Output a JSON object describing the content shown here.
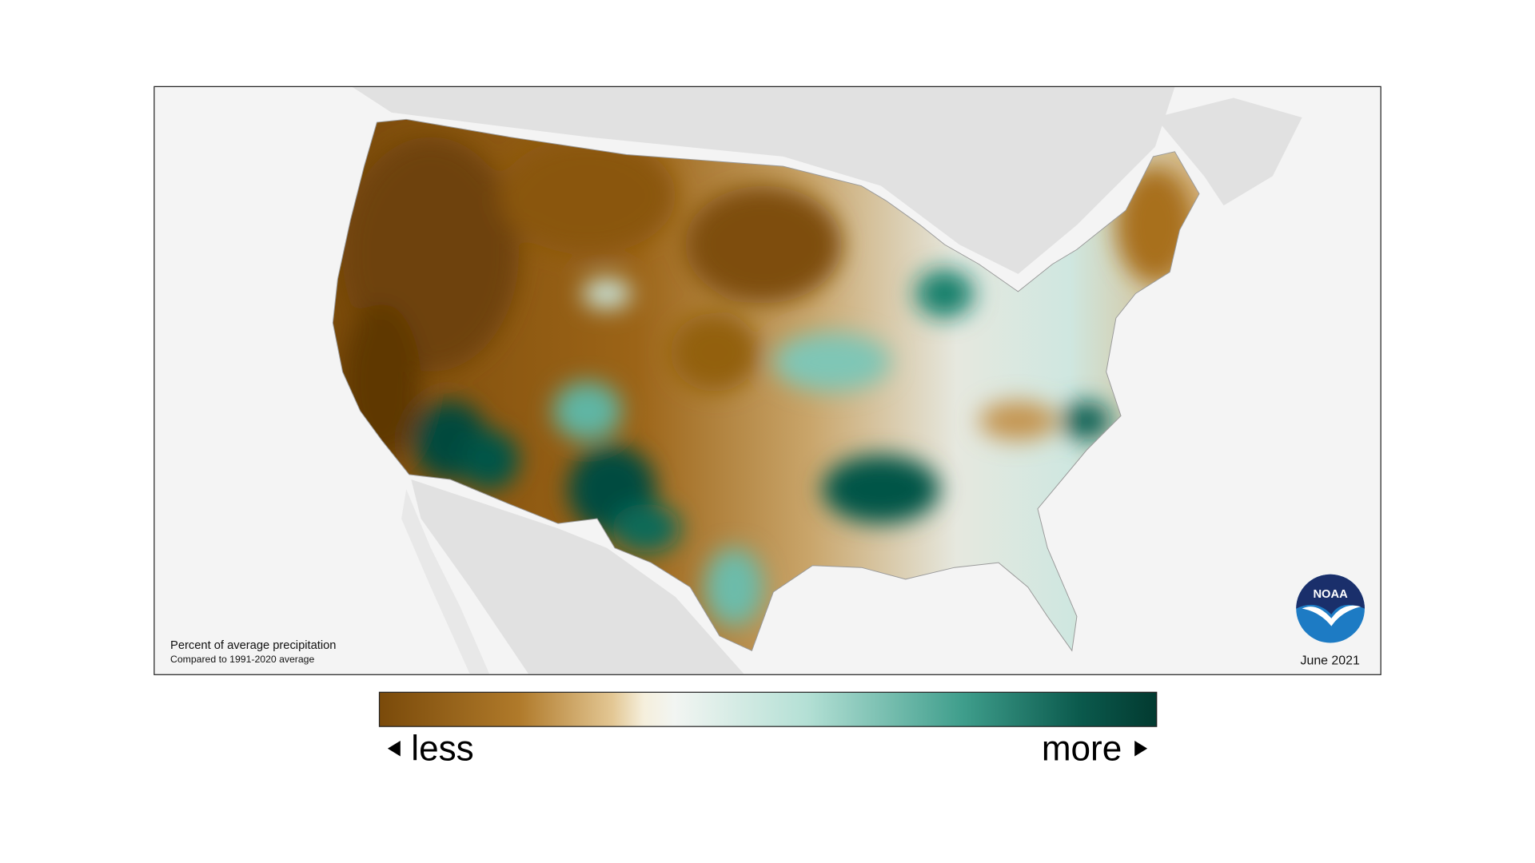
{
  "map": {
    "note_title": "Percent of average precipitation",
    "note_subtitle": "Compared to 1991-2020 average",
    "date": "June 2021",
    "logo": "NOAA"
  },
  "legend": {
    "low": "less",
    "high": "more"
  }
}
